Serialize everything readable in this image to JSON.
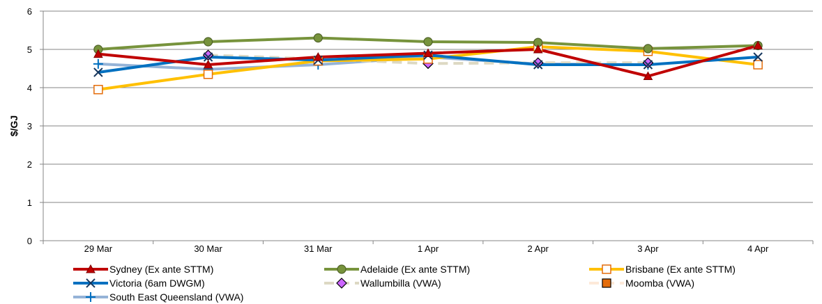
{
  "chart_data": {
    "type": "line",
    "title": "",
    "xlabel": "",
    "ylabel": "$/GJ",
    "ylim": [
      0,
      6
    ],
    "y_ticks": [
      0,
      1,
      2,
      3,
      4,
      5,
      6
    ],
    "grid": "horizontal",
    "legend_position": "bottom",
    "categories": [
      "29 Mar",
      "30 Mar",
      "31 Mar",
      "1 Apr",
      "2 Apr",
      "3 Apr",
      "4 Apr"
    ],
    "series": [
      {
        "name": "Sydney (Ex ante STTM)",
        "color": "#c00000",
        "marker": "triangle",
        "dashed": false,
        "show_markers": true,
        "values": [
          4.88,
          4.6,
          4.8,
          4.9,
          5.0,
          4.3,
          5.1
        ]
      },
      {
        "name": "Adelaide (Ex ante STTM)",
        "color": "#77933c",
        "marker": "circle",
        "dashed": false,
        "show_markers": true,
        "values": [
          5.0,
          5.2,
          5.3,
          5.2,
          5.18,
          5.02,
          5.1
        ]
      },
      {
        "name": "Brisbane (Ex ante STTM)",
        "color": "#ffc000",
        "marker": "square-open",
        "dashed": false,
        "show_markers": true,
        "values": [
          3.95,
          4.35,
          4.7,
          4.75,
          5.07,
          4.95,
          4.6
        ]
      },
      {
        "name": "Victoria (6am DWGM)",
        "color": "#0070c0",
        "marker": "x",
        "dashed": false,
        "show_markers": true,
        "values": [
          4.4,
          4.8,
          4.72,
          4.85,
          4.6,
          4.6,
          4.8
        ]
      },
      {
        "name": "Wallumbilla (VWA)",
        "color": "#ddd9c3",
        "marker": "diamond",
        "dashed": true,
        "show_markers": true,
        "values": [
          null,
          4.85,
          4.75,
          4.63,
          4.65,
          4.65,
          null
        ]
      },
      {
        "name": "Moomba (VWA)",
        "color": "#fde9d9",
        "marker": "square-filled",
        "dashed": true,
        "show_markers": false,
        "values": [
          null,
          null,
          null,
          null,
          null,
          null,
          null
        ]
      },
      {
        "name": "South East Queensland (VWA)",
        "color": "#95b3d7",
        "marker": "plus",
        "dashed": false,
        "show_markers": true,
        "values": [
          4.62,
          4.48,
          4.6,
          4.8,
          4.62,
          4.6,
          null
        ]
      }
    ]
  }
}
